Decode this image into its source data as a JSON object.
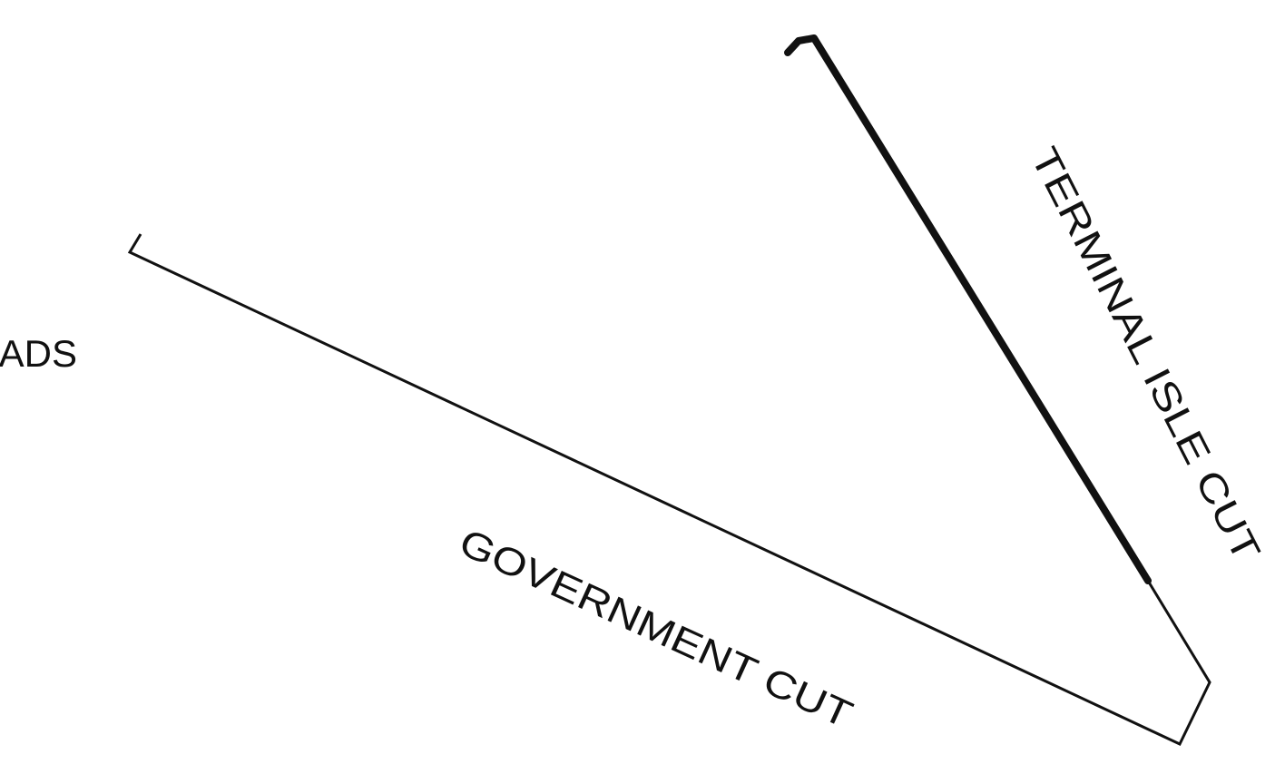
{
  "labels": {
    "left": "ADS",
    "government_cut": "GOVERNMENT CUT",
    "terminal_isle_cut": "TERMINAL ISLE CUT"
  }
}
